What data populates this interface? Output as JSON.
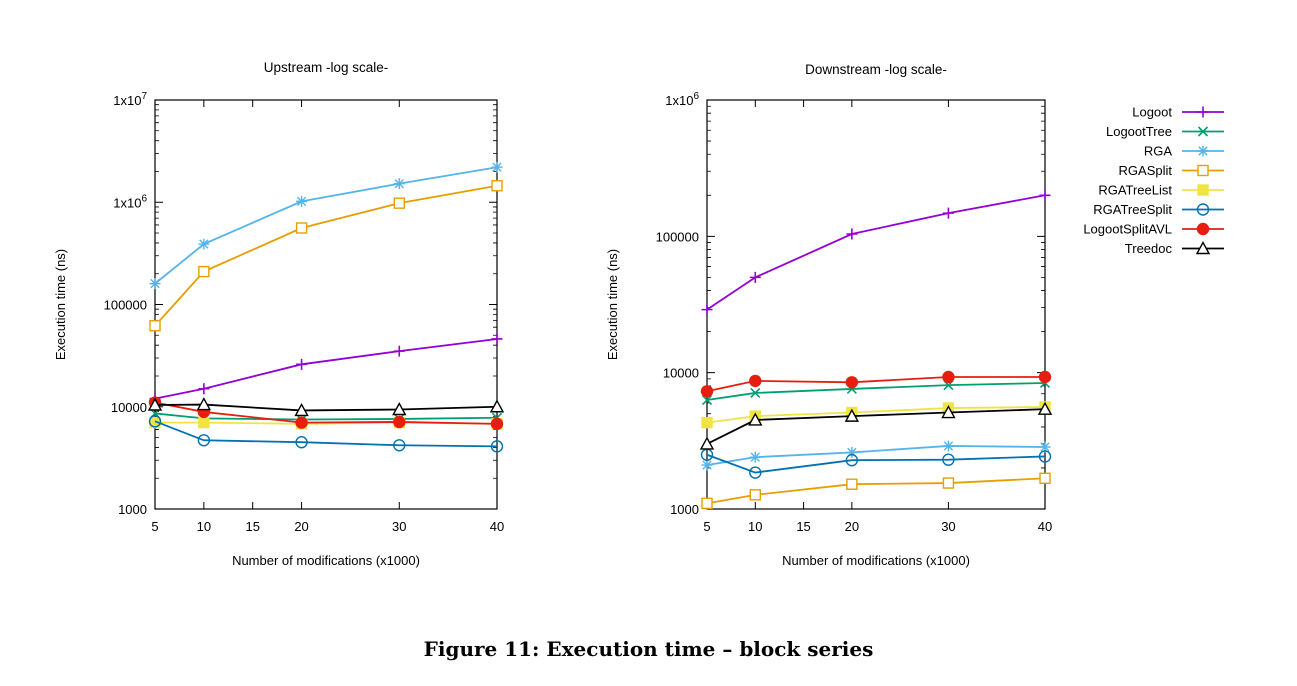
{
  "caption": "Figure 11: Execution time – block series",
  "legend": {
    "placement": "right"
  },
  "chart_data": [
    {
      "type": "line",
      "title": "Upstream -log scale-",
      "xlabel": "Number of modifications (x1000)",
      "ylabel": "Execution time (ns)",
      "xlim": [
        5,
        40
      ],
      "ylim": [
        1000,
        10000000
      ],
      "ylog": true,
      "xticks": [
        5,
        10,
        15,
        20,
        30,
        40
      ],
      "yticks": [
        {
          "v": 1000,
          "label": "1000"
        },
        {
          "v": 10000,
          "label": "10000"
        },
        {
          "v": 100000,
          "label": "100000"
        },
        {
          "v": 1000000,
          "label": "1x10",
          "sup": "6"
        },
        {
          "v": 10000000,
          "label": "1x10",
          "sup": "7"
        }
      ],
      "x": [
        5,
        10,
        20,
        30,
        40
      ],
      "series": [
        {
          "name": "Logoot",
          "color": "#9400d3",
          "marker": "plus",
          "values": [
            12000,
            15000,
            26000,
            35000,
            46000
          ]
        },
        {
          "name": "LogootTree",
          "color": "#009e73",
          "marker": "x",
          "values": [
            8600,
            7700,
            7500,
            7600,
            7800
          ]
        },
        {
          "name": "RGA",
          "color": "#56b4e9",
          "marker": "star",
          "values": [
            160000,
            390000,
            1020000,
            1520000,
            2200000
          ]
        },
        {
          "name": "RGASplit",
          "color": "#e69f00",
          "marker": "square",
          "values": [
            62000,
            210000,
            560000,
            980000,
            1450000
          ]
        },
        {
          "name": "RGATreeList",
          "color": "#f0e442",
          "marker": "fsquare",
          "values": [
            7000,
            7000,
            6800,
            7000,
            6800
          ]
        },
        {
          "name": "RGATreeSplit",
          "color": "#0072b2",
          "marker": "circle",
          "values": [
            7200,
            4700,
            4500,
            4200,
            4100
          ]
        },
        {
          "name": "LogootSplitAVL",
          "color": "#e51e10",
          "marker": "fcircle",
          "values": [
            11000,
            8900,
            7000,
            7100,
            6800
          ]
        },
        {
          "name": "Treedoc",
          "color": "#000000",
          "marker": "triangle",
          "values": [
            10400,
            10500,
            9200,
            9400,
            10000
          ]
        }
      ]
    },
    {
      "type": "line",
      "title": "Downstream -log scale-",
      "xlabel": "Number of modifications (x1000)",
      "ylabel": "Execution time (ns)",
      "xlim": [
        5,
        40
      ],
      "ylim": [
        1000,
        1000000
      ],
      "ylog": true,
      "xticks": [
        5,
        10,
        15,
        20,
        30,
        40
      ],
      "yticks": [
        {
          "v": 1000,
          "label": "1000"
        },
        {
          "v": 10000,
          "label": "10000"
        },
        {
          "v": 100000,
          "label": "100000"
        },
        {
          "v": 1000000,
          "label": "1x10",
          "sup": "6"
        }
      ],
      "x": [
        5,
        10,
        20,
        30,
        40
      ],
      "series": [
        {
          "name": "Logoot",
          "color": "#9400d3",
          "marker": "plus",
          "values": [
            29000,
            50000,
            104000,
            148000,
            200000
          ]
        },
        {
          "name": "LogootTree",
          "color": "#009e73",
          "marker": "x",
          "values": [
            6300,
            7100,
            7600,
            8100,
            8400
          ]
        },
        {
          "name": "RGA",
          "color": "#56b4e9",
          "marker": "star",
          "values": [
            2100,
            2400,
            2600,
            2900,
            2850
          ]
        },
        {
          "name": "RGASplit",
          "color": "#e69f00",
          "marker": "square",
          "values": [
            1100,
            1270,
            1520,
            1550,
            1680
          ]
        },
        {
          "name": "RGATreeList",
          "color": "#f0e442",
          "marker": "fsquare",
          "values": [
            4300,
            4800,
            5100,
            5500,
            5600
          ]
        },
        {
          "name": "RGATreeSplit",
          "color": "#0072b2",
          "marker": "circle",
          "values": [
            2500,
            1850,
            2280,
            2300,
            2430
          ]
        },
        {
          "name": "LogootSplitAVL",
          "color": "#e51e10",
          "marker": "fcircle",
          "values": [
            7300,
            8700,
            8500,
            9300,
            9300
          ]
        },
        {
          "name": "Treedoc",
          "color": "#000000",
          "marker": "triangle",
          "values": [
            3000,
            4500,
            4800,
            5100,
            5400
          ]
        }
      ]
    }
  ]
}
